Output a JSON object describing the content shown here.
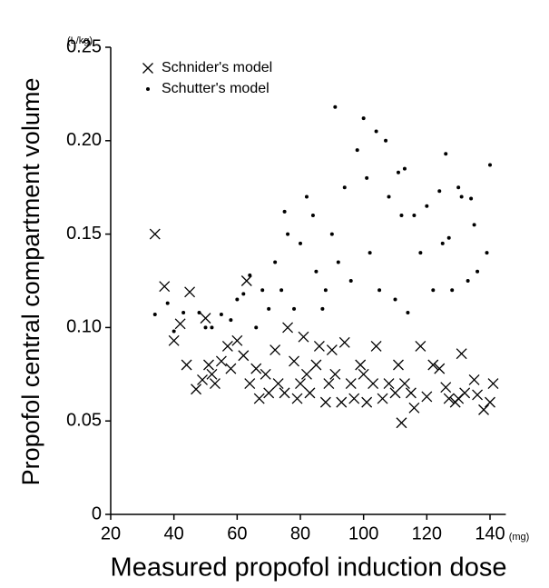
{
  "chart_data": {
    "type": "scatter",
    "xlabel": "Measured propofol induction dose",
    "ylabel": "Propofol central compartment volume",
    "x_unit": "(mg)",
    "y_unit": "(L/kg)",
    "xlim": [
      20,
      145
    ],
    "ylim": [
      0,
      0.25
    ],
    "xticks": [
      20,
      40,
      60,
      80,
      100,
      120,
      140
    ],
    "yticks": [
      0,
      0.05,
      {
        "value": 0.1,
        "label": "0.10"
      },
      0.15,
      {
        "value": 0.2,
        "label": "0.20"
      },
      0.25
    ],
    "legend": "top-left",
    "series": [
      {
        "name": "Schnider's model",
        "marker": "x",
        "color": "#000000",
        "x": [
          34,
          37,
          45,
          40,
          42,
          44,
          47,
          49,
          50,
          51,
          52,
          53,
          55,
          57,
          58,
          60,
          62,
          63,
          64,
          66,
          67,
          69,
          70,
          72,
          73,
          75,
          76,
          78,
          79,
          80,
          81,
          82,
          83,
          85,
          86,
          88,
          89,
          90,
          91,
          93,
          94,
          96,
          97,
          99,
          100,
          101,
          103,
          104,
          106,
          108,
          110,
          111,
          112,
          113,
          115,
          116,
          118,
          120,
          122,
          124,
          126,
          127,
          129,
          130,
          131,
          132,
          135,
          136,
          138,
          140,
          141
        ],
        "values": [
          0.15,
          0.122,
          0.119,
          0.093,
          0.102,
          0.08,
          0.067,
          0.072,
          0.105,
          0.08,
          0.075,
          0.07,
          0.082,
          0.09,
          0.078,
          0.093,
          0.085,
          0.125,
          0.07,
          0.078,
          0.062,
          0.075,
          0.065,
          0.088,
          0.07,
          0.065,
          0.1,
          0.082,
          0.062,
          0.07,
          0.095,
          0.075,
          0.065,
          0.08,
          0.09,
          0.06,
          0.07,
          0.088,
          0.075,
          0.06,
          0.092,
          0.07,
          0.062,
          0.08,
          0.075,
          0.06,
          0.07,
          0.09,
          0.062,
          0.07,
          0.065,
          0.08,
          0.049,
          0.07,
          0.065,
          0.057,
          0.09,
          0.063,
          0.08,
          0.078,
          0.068,
          0.062,
          0.06,
          0.062,
          0.086,
          0.065,
          0.072,
          0.064,
          0.056,
          0.06,
          0.07
        ]
      },
      {
        "name": "Schutter's model",
        "marker": "dot",
        "color": "#000000",
        "x": [
          34,
          38,
          40,
          43,
          48,
          50,
          52,
          55,
          58,
          60,
          62,
          64,
          66,
          68,
          70,
          72,
          74,
          75,
          76,
          78,
          80,
          82,
          84,
          85,
          87,
          88,
          90,
          91,
          92,
          94,
          96,
          98,
          100,
          101,
          102,
          104,
          105,
          107,
          108,
          110,
          111,
          112,
          113,
          114,
          116,
          118,
          120,
          122,
          124,
          125,
          126,
          128,
          130,
          131,
          133,
          134,
          135,
          136,
          140,
          139,
          127
        ],
        "values": [
          0.107,
          0.113,
          0.098,
          0.108,
          0.108,
          0.1,
          0.1,
          0.107,
          0.104,
          0.115,
          0.118,
          0.128,
          0.1,
          0.12,
          0.11,
          0.135,
          0.12,
          0.162,
          0.15,
          0.11,
          0.145,
          0.17,
          0.16,
          0.13,
          0.11,
          0.12,
          0.15,
          0.218,
          0.135,
          0.175,
          0.125,
          0.195,
          0.212,
          0.18,
          0.14,
          0.205,
          0.12,
          0.2,
          0.17,
          0.115,
          0.183,
          0.16,
          0.185,
          0.108,
          0.16,
          0.14,
          0.165,
          0.12,
          0.173,
          0.145,
          0.193,
          0.12,
          0.175,
          0.17,
          0.125,
          0.169,
          0.155,
          0.13,
          0.187,
          0.14,
          0.148
        ]
      }
    ]
  }
}
